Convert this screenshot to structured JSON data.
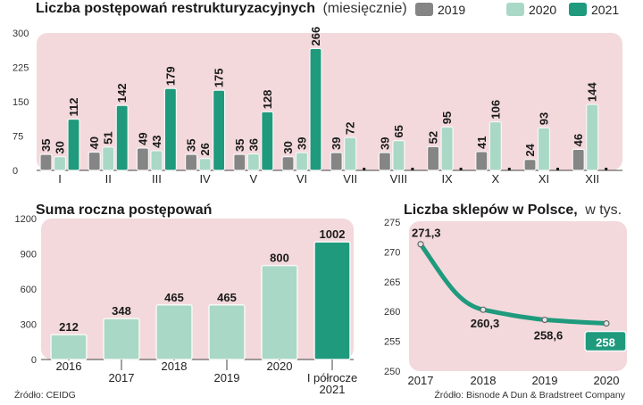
{
  "colors": {
    "panel_bg": "#f3d9dc",
    "bar_2019": "#858585",
    "bar_2020": "#a9d8c6",
    "bar_2021": "#1f9a7d",
    "border": "#e6e6e6"
  },
  "monthly": {
    "title_bold": "Liczba postępowań restrukturyzacyjnych",
    "title_light": "(miesięcznie)",
    "legend": [
      "2019",
      "2020",
      "2021"
    ],
    "yticks": [
      "0",
      "75",
      "150",
      "225",
      "300"
    ],
    "chart_data": {
      "type": "bar",
      "title": "Liczba postępowań restrukturyzacyjnych (miesięcznie)",
      "categories": [
        "I",
        "II",
        "III",
        "IV",
        "V",
        "VI",
        "VII",
        "VIII",
        "IX",
        "X",
        "XI",
        "XII"
      ],
      "series": [
        {
          "name": "2019",
          "values": [
            35,
            40,
            49,
            35,
            35,
            30,
            39,
            39,
            52,
            41,
            24,
            46
          ]
        },
        {
          "name": "2020",
          "values": [
            30,
            51,
            43,
            26,
            36,
            39,
            72,
            65,
            95,
            106,
            93,
            144
          ]
        },
        {
          "name": "2021",
          "values": [
            112,
            142,
            179,
            175,
            128,
            266,
            null,
            null,
            null,
            null,
            null,
            null
          ]
        }
      ],
      "ylim": [
        0,
        300
      ]
    }
  },
  "annual": {
    "title": "Suma roczna postępowań",
    "yticks": [
      "0",
      "300",
      "600",
      "900",
      "1200"
    ],
    "chart_data": {
      "type": "bar",
      "title": "Suma roczna postępowań",
      "categories": [
        "2016",
        "2017",
        "2018",
        "2019",
        "2020",
        "I półrocze 2021"
      ],
      "label_lines": [
        [
          "2016"
        ],
        [
          "2017"
        ],
        [
          "2018"
        ],
        [
          "2019"
        ],
        [
          "2020"
        ],
        [
          "I półrocze",
          "2021"
        ]
      ],
      "values": [
        212,
        348,
        465,
        465,
        800,
        1002
      ],
      "value_labels": [
        "212",
        "348",
        "465",
        "465",
        "800",
        "1002"
      ],
      "ylim": [
        0,
        1200
      ]
    }
  },
  "shops": {
    "title_bold": "Liczba sklepów w Polsce,",
    "title_light": "w tys.",
    "yticks": [
      "250",
      "255",
      "260",
      "265",
      "270",
      "275"
    ],
    "chart_data": {
      "type": "line",
      "title": "Liczba sklepów w Polsce, w tys.",
      "x": [
        "2017",
        "2018",
        "2019",
        "2020"
      ],
      "values": [
        271.3,
        260.3,
        258.6,
        258
      ],
      "value_labels": [
        "271,3",
        "260,3",
        "258,6",
        "258"
      ],
      "ylim": [
        250,
        275
      ]
    }
  },
  "sources": {
    "left": "Źródło: CEIDG",
    "right": "Źródło: Bisnode A Dun & Bradstreet Company"
  }
}
